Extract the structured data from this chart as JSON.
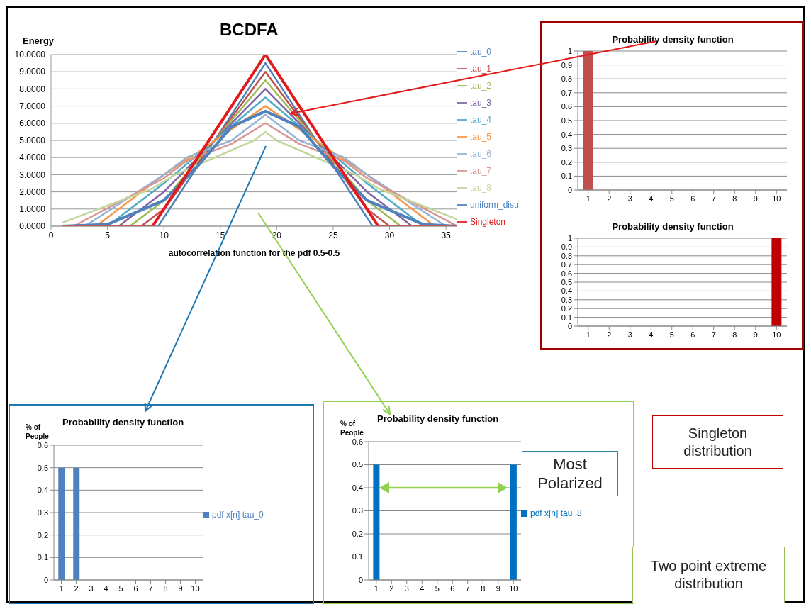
{
  "chart_data": [
    {
      "type": "line",
      "title": "BCDFA",
      "ylabel": "Energy",
      "xlabel": "autocorrelation function for the pdf 0.5-0.5",
      "xlim": [
        0,
        36
      ],
      "xticks": [
        0,
        5,
        10,
        15,
        20,
        25,
        30,
        35
      ],
      "ylim": [
        0,
        10
      ],
      "yticks": [
        {
          "value": 0,
          "label": "0.0000"
        },
        {
          "value": 1,
          "label": "1.0000"
        },
        {
          "value": 2,
          "label": "2.0000"
        },
        {
          "value": 3,
          "label": "3.0000"
        },
        {
          "value": 4,
          "label": "4.0000"
        },
        {
          "value": 5,
          "label": "5.0000"
        },
        {
          "value": 6,
          "label": "6.0000"
        },
        {
          "value": 7,
          "label": "7.0000"
        },
        {
          "value": 8,
          "label": "8.0000"
        },
        {
          "value": 9,
          "label": "9.0000"
        },
        {
          "value": 10,
          "label": "10.0000"
        }
      ],
      "grid": "y",
      "legend": "right",
      "series": [
        {
          "name": "tau_0",
          "color": "#4f81bd",
          "x": [
            1,
            9.5,
            19,
            28.5,
            36
          ],
          "values": [
            0,
            0,
            9.5,
            0,
            0
          ]
        },
        {
          "name": "tau_1",
          "color": "#c0504d",
          "x": [
            1,
            8,
            10,
            19,
            28,
            30,
            36
          ],
          "values": [
            0,
            0,
            1,
            9,
            1,
            0,
            0
          ]
        },
        {
          "name": "tau_2",
          "color": "#9bbb59",
          "x": [
            1,
            7,
            10,
            19,
            28,
            31,
            36
          ],
          "values": [
            0,
            0,
            1.5,
            8.5,
            1.5,
            0,
            0
          ]
        },
        {
          "name": "tau_3",
          "color": "#8064a2",
          "x": [
            1,
            6,
            10,
            19,
            28,
            32,
            36
          ],
          "values": [
            0,
            0,
            2,
            8,
            2,
            0,
            0
          ]
        },
        {
          "name": "tau_4",
          "color": "#4bacc6",
          "x": [
            1,
            5,
            10,
            19,
            28,
            33,
            36
          ],
          "values": [
            0,
            0,
            2.5,
            7.5,
            2.5,
            0,
            0
          ]
        },
        {
          "name": "tau_5",
          "color": "#f79646",
          "x": [
            1,
            4,
            10,
            13,
            19,
            25,
            28,
            34,
            36
          ],
          "values": [
            0,
            0,
            3,
            4.3,
            7,
            4.3,
            3,
            0,
            0
          ]
        },
        {
          "name": "tau_6",
          "color": "#95b3d7",
          "x": [
            1,
            3,
            10,
            12,
            16,
            19,
            22,
            26,
            28,
            35,
            36
          ],
          "values": [
            0,
            0,
            3,
            4,
            5,
            6.5,
            5,
            4,
            3,
            0,
            0
          ]
        },
        {
          "name": "tau_7",
          "color": "#d99694",
          "x": [
            1,
            2,
            10,
            12,
            16,
            19,
            22,
            26,
            28,
            36
          ],
          "values": [
            0,
            0,
            2.8,
            3.8,
            4.8,
            6,
            4.8,
            3.8,
            2.8,
            0
          ]
        },
        {
          "name": "tau_8",
          "color": "#c3d69b",
          "x": [
            1,
            9,
            11,
            18,
            19,
            20,
            27,
            29,
            36
          ],
          "values": [
            0.2,
            2.2,
            3,
            5,
            5.5,
            5,
            3,
            2.2,
            0.4
          ]
        },
        {
          "name": "uniform_distr",
          "color": "#4f81bd",
          "x": [
            1,
            5,
            10,
            13,
            16,
            19,
            22,
            25,
            28,
            33,
            36
          ],
          "values": [
            0,
            0.1,
            1.5,
            3.5,
            5.8,
            6.7,
            5.8,
            3.5,
            1.5,
            0.1,
            0
          ]
        },
        {
          "name": "Singleton",
          "color": "#e31a1c",
          "x": [
            1,
            9,
            19,
            29,
            36
          ],
          "values": [
            0,
            0,
            10,
            0,
            0
          ]
        }
      ]
    },
    {
      "type": "bar",
      "title": "Probability density function",
      "categories": [
        "1",
        "2",
        "3",
        "4",
        "5",
        "6",
        "7",
        "8",
        "9",
        "10"
      ],
      "values": [
        1,
        0,
        0,
        0,
        0,
        0,
        0,
        0,
        0,
        0
      ],
      "color": "#c0504d",
      "ylim": [
        0,
        1
      ],
      "yticks": [
        0,
        0.1,
        0.2,
        0.3,
        0.4,
        0.5,
        0.6,
        0.7,
        0.8,
        0.9,
        1
      ],
      "grid": "y",
      "annotations": [
        "Singleton distribution"
      ]
    },
    {
      "type": "bar",
      "title": "Probability density function",
      "categories": [
        "1",
        "2",
        "3",
        "4",
        "5",
        "6",
        "7",
        "8",
        "9",
        "10"
      ],
      "values": [
        0,
        0,
        0,
        0,
        0,
        0,
        0,
        0,
        0,
        1
      ],
      "color": "#c00000",
      "ylim": [
        0,
        1
      ],
      "yticks": [
        0,
        0.1,
        0.2,
        0.3,
        0.4,
        0.5,
        0.6,
        0.7,
        0.8,
        0.9,
        1
      ],
      "grid": "y"
    },
    {
      "type": "bar",
      "title": "Probability density function",
      "ylabel": "% of People",
      "categories": [
        "1",
        "2",
        "3",
        "4",
        "5",
        "6",
        "7",
        "8",
        "9",
        "10"
      ],
      "series": [
        {
          "name": "pdf x[n] tau_0",
          "color": "#4f81bd",
          "values": [
            0.5,
            0.5,
            0,
            0,
            0,
            0,
            0,
            0,
            0,
            0
          ]
        }
      ],
      "ylim": [
        0,
        0.6
      ],
      "yticks": [
        0,
        0.1,
        0.2,
        0.3,
        0.4,
        0.5,
        0.6
      ],
      "grid": "y",
      "legend": "right"
    },
    {
      "type": "bar",
      "title": "Probability density function",
      "ylabel": "% of People",
      "categories": [
        "1",
        "2",
        "3",
        "4",
        "5",
        "6",
        "7",
        "8",
        "9",
        "10"
      ],
      "series": [
        {
          "name": "pdf x[n] tau_8",
          "color": "#0070c0",
          "values": [
            0.5,
            0,
            0,
            0,
            0,
            0,
            0,
            0,
            0,
            0.5
          ]
        }
      ],
      "ylim": [
        0,
        0.6
      ],
      "yticks": [
        0,
        0.1,
        0.2,
        0.3,
        0.4,
        0.5,
        0.6
      ],
      "grid": "y",
      "legend": "right",
      "annotations": [
        "Most Polarized",
        "Two point extreme distribution"
      ]
    }
  ]
}
